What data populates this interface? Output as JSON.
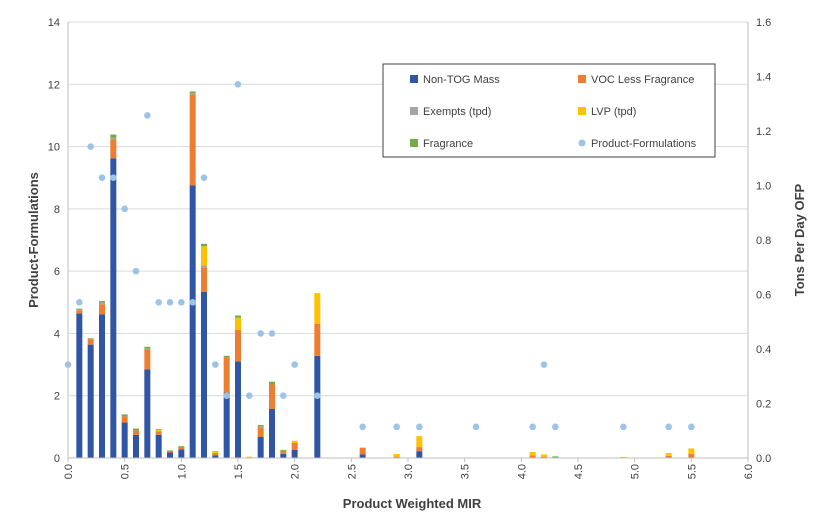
{
  "chart_data": {
    "type": "bar",
    "xlabel": "Product Weighted MIR",
    "ylabel_left": "Product-Formulations",
    "ylabel_right": "Tons Per Day OFP",
    "xlim": [
      0.0,
      6.0
    ],
    "ylim_left": [
      0,
      14
    ],
    "ylim_right": [
      0.0,
      1.6
    ],
    "x_ticks": [
      "0.0",
      "0.5",
      "1.0",
      "1.5",
      "2.0",
      "2.5",
      "3.0",
      "3.5",
      "4.0",
      "4.5",
      "5.0",
      "5.5",
      "6.0"
    ],
    "y_left_ticks": [
      "0",
      "2",
      "4",
      "6",
      "8",
      "10",
      "12",
      "14"
    ],
    "y_right_ticks": [
      "0.0",
      "0.2",
      "0.4",
      "0.6",
      "0.8",
      "1.0",
      "1.2",
      "1.4",
      "1.6"
    ],
    "grid": true,
    "legend_position": "top-right",
    "colors": {
      "Non-TOG Mass": "#2F55A4",
      "VOC Less Fragrance": "#ED7D31",
      "Exempts (tpd)": "#A5A5A5",
      "LVP (tpd)": "#FFC000",
      "Fragrance": "#70AD47",
      "Product-Formulations": "#9DC3E6"
    },
    "bar_series_order": [
      "Non-TOG Mass",
      "VOC Less Fragrance",
      "Exempts (tpd)",
      "LVP (tpd)",
      "Fragrance"
    ],
    "legend": [
      {
        "name": "Non-TOG Mass",
        "kind": "square"
      },
      {
        "name": "VOC Less Fragrance",
        "kind": "square"
      },
      {
        "name": "Exempts (tpd)",
        "kind": "square"
      },
      {
        "name": "LVP (tpd)",
        "kind": "square"
      },
      {
        "name": "Fragrance",
        "kind": "square"
      },
      {
        "name": "Product-Formulations",
        "kind": "dot"
      }
    ],
    "bars_tpd": [
      {
        "x": 0.1,
        "Non-TOG Mass": 0.53,
        "VOC Less Fragrance": 0.012,
        "Exempts (tpd)": 0.003,
        "LVP (tpd)": 0.0,
        "Fragrance": 0.003
      },
      {
        "x": 0.2,
        "Non-TOG Mass": 0.416,
        "VOC Less Fragrance": 0.02,
        "Exempts (tpd)": 0.002,
        "LVP (tpd)": 0.0,
        "Fragrance": 0.002
      },
      {
        "x": 0.3,
        "Non-TOG Mass": 0.527,
        "VOC Less Fragrance": 0.037,
        "Exempts (tpd)": 0.007,
        "LVP (tpd)": 0.0,
        "Fragrance": 0.005
      },
      {
        "x": 0.4,
        "Non-TOG Mass": 1.1,
        "VOC Less Fragrance": 0.07,
        "Exempts (tpd)": 0.006,
        "LVP (tpd)": 0.0,
        "Fragrance": 0.011
      },
      {
        "x": 0.5,
        "Non-TOG Mass": 0.13,
        "VOC Less Fragrance": 0.023,
        "Exempts (tpd)": 0.0,
        "LVP (tpd)": 0.0,
        "Fragrance": 0.007
      },
      {
        "x": 0.6,
        "Non-TOG Mass": 0.085,
        "VOC Less Fragrance": 0.017,
        "Exempts (tpd)": 0.0,
        "LVP (tpd)": 0.0,
        "Fragrance": 0.006
      },
      {
        "x": 0.7,
        "Non-TOG Mass": 0.325,
        "VOC Less Fragrance": 0.073,
        "Exempts (tpd)": 0.003,
        "LVP (tpd)": 0.0,
        "Fragrance": 0.007
      },
      {
        "x": 0.8,
        "Non-TOG Mass": 0.085,
        "VOC Less Fragrance": 0.013,
        "Exempts (tpd)": 0.0,
        "LVP (tpd)": 0.005,
        "Fragrance": 0.003
      },
      {
        "x": 0.9,
        "Non-TOG Mass": 0.02,
        "VOC Less Fragrance": 0.006,
        "Exempts (tpd)": 0.0,
        "LVP (tpd)": 0.0,
        "Fragrance": 0.002
      },
      {
        "x": 1.0,
        "Non-TOG Mass": 0.032,
        "VOC Less Fragrance": 0.009,
        "Exempts (tpd)": 0.0,
        "LVP (tpd)": 0.0,
        "Fragrance": 0.003
      },
      {
        "x": 1.1,
        "Non-TOG Mass": 1.0,
        "VOC Less Fragrance": 0.335,
        "Exempts (tpd)": 0.003,
        "LVP (tpd)": 0.0,
        "Fragrance": 0.007
      },
      {
        "x": 1.2,
        "Non-TOG Mass": 0.61,
        "VOC Less Fragrance": 0.09,
        "Exempts (tpd)": 0.007,
        "LVP (tpd)": 0.07,
        "Fragrance": 0.009
      },
      {
        "x": 1.3,
        "Non-TOG Mass": 0.01,
        "VOC Less Fragrance": 0.008,
        "Exempts (tpd)": 0.0,
        "LVP (tpd)": 0.005,
        "Fragrance": 0.002
      },
      {
        "x": 1.4,
        "Non-TOG Mass": 0.24,
        "VOC Less Fragrance": 0.13,
        "Exempts (tpd)": 0.0,
        "LVP (tpd)": 0.0,
        "Fragrance": 0.005
      },
      {
        "x": 1.5,
        "Non-TOG Mass": 0.355,
        "VOC Less Fragrance": 0.115,
        "Exempts (tpd)": 0.0,
        "LVP (tpd)": 0.045,
        "Fragrance": 0.008
      },
      {
        "x": 1.6,
        "Non-TOG Mass": 0.0,
        "VOC Less Fragrance": 0.0,
        "Exempts (tpd)": 0.0,
        "LVP (tpd)": 0.005,
        "Fragrance": 0.0
      },
      {
        "x": 1.7,
        "Non-TOG Mass": 0.077,
        "VOC Less Fragrance": 0.036,
        "Exempts (tpd)": 0.002,
        "LVP (tpd)": 0.0,
        "Fragrance": 0.006
      },
      {
        "x": 1.8,
        "Non-TOG Mass": 0.18,
        "VOC Less Fragrance": 0.09,
        "Exempts (tpd)": 0.0,
        "LVP (tpd)": 0.0,
        "Fragrance": 0.01
      },
      {
        "x": 1.9,
        "Non-TOG Mass": 0.015,
        "VOC Less Fragrance": 0.012,
        "Exempts (tpd)": 0.0,
        "LVP (tpd)": 0.0,
        "Fragrance": 0.003
      },
      {
        "x": 2.0,
        "Non-TOG Mass": 0.03,
        "VOC Less Fragrance": 0.025,
        "Exempts (tpd)": 0.0,
        "LVP (tpd)": 0.008,
        "Fragrance": 0.0
      },
      {
        "x": 2.2,
        "Non-TOG Mass": 0.375,
        "VOC Less Fragrance": 0.118,
        "Exempts (tpd)": 0.0,
        "LVP (tpd)": 0.112,
        "Fragrance": 0.0
      },
      {
        "x": 2.6,
        "Non-TOG Mass": 0.013,
        "VOC Less Fragrance": 0.025,
        "Exempts (tpd)": 0.0,
        "LVP (tpd)": 0.0,
        "Fragrance": 0.0
      },
      {
        "x": 2.9,
        "Non-TOG Mass": 0.0,
        "VOC Less Fragrance": 0.005,
        "Exempts (tpd)": 0.0,
        "LVP (tpd)": 0.01,
        "Fragrance": 0.0
      },
      {
        "x": 3.1,
        "Non-TOG Mass": 0.025,
        "VOC Less Fragrance": 0.015,
        "Exempts (tpd)": 0.0,
        "LVP (tpd)": 0.04,
        "Fragrance": 0.0
      },
      {
        "x": 4.1,
        "Non-TOG Mass": 0.0,
        "VOC Less Fragrance": 0.01,
        "Exempts (tpd)": 0.0,
        "LVP (tpd)": 0.012,
        "Fragrance": 0.0
      },
      {
        "x": 4.2,
        "Non-TOG Mass": 0.0,
        "VOC Less Fragrance": 0.005,
        "Exempts (tpd)": 0.0,
        "LVP (tpd)": 0.008,
        "Fragrance": 0.0
      },
      {
        "x": 4.3,
        "Non-TOG Mass": 0.0,
        "VOC Less Fragrance": 0.0,
        "Exempts (tpd)": 0.0,
        "LVP (tpd)": 0.0,
        "Fragrance": 0.006
      },
      {
        "x": 4.9,
        "Non-TOG Mass": 0.0,
        "VOC Less Fragrance": 0.0,
        "Exempts (tpd)": 0.0,
        "LVP (tpd)": 0.004,
        "Fragrance": 0.0
      },
      {
        "x": 5.3,
        "Non-TOG Mass": 0.0,
        "VOC Less Fragrance": 0.008,
        "Exempts (tpd)": 0.0,
        "LVP (tpd)": 0.01,
        "Fragrance": 0.0
      },
      {
        "x": 5.5,
        "Non-TOG Mass": 0.0,
        "VOC Less Fragrance": 0.015,
        "Exempts (tpd)": 0.0,
        "LVP (tpd)": 0.02,
        "Fragrance": 0.0
      }
    ],
    "product_formulations": [
      {
        "x": 0.0,
        "y": 3
      },
      {
        "x": 0.1,
        "y": 5
      },
      {
        "x": 0.2,
        "y": 10
      },
      {
        "x": 0.3,
        "y": 9
      },
      {
        "x": 0.4,
        "y": 9
      },
      {
        "x": 0.5,
        "y": 8
      },
      {
        "x": 0.6,
        "y": 6
      },
      {
        "x": 0.7,
        "y": 11
      },
      {
        "x": 0.8,
        "y": 5
      },
      {
        "x": 0.9,
        "y": 5
      },
      {
        "x": 1.0,
        "y": 5
      },
      {
        "x": 1.1,
        "y": 5
      },
      {
        "x": 1.2,
        "y": 9
      },
      {
        "x": 1.3,
        "y": 3
      },
      {
        "x": 1.4,
        "y": 2
      },
      {
        "x": 1.5,
        "y": 12
      },
      {
        "x": 1.6,
        "y": 2
      },
      {
        "x": 1.7,
        "y": 4
      },
      {
        "x": 1.8,
        "y": 4
      },
      {
        "x": 1.9,
        "y": 2
      },
      {
        "x": 2.0,
        "y": 3
      },
      {
        "x": 2.2,
        "y": 2
      },
      {
        "x": 2.6,
        "y": 1
      },
      {
        "x": 2.9,
        "y": 1
      },
      {
        "x": 3.1,
        "y": 1
      },
      {
        "x": 3.6,
        "y": 1
      },
      {
        "x": 4.1,
        "y": 1
      },
      {
        "x": 4.2,
        "y": 3
      },
      {
        "x": 4.3,
        "y": 1
      },
      {
        "x": 4.9,
        "y": 1
      },
      {
        "x": 5.3,
        "y": 1
      },
      {
        "x": 5.5,
        "y": 1
      }
    ]
  }
}
